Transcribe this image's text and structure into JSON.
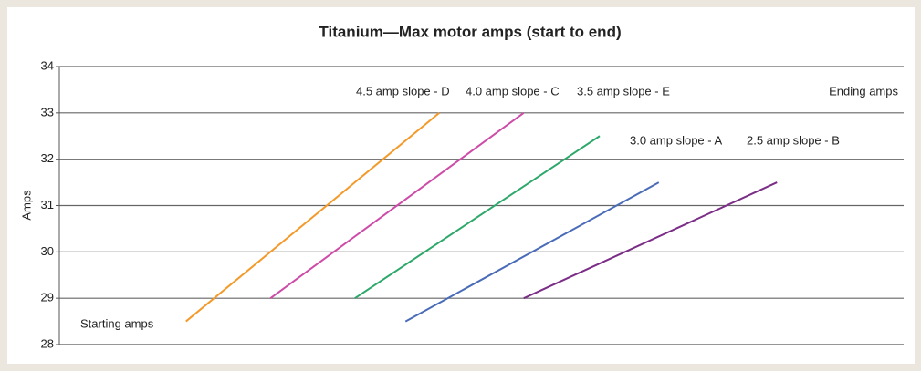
{
  "chart_data": {
    "type": "line",
    "title": "Titanium—Max motor amps (start to end)",
    "y_label": "Amps",
    "annotations": [
      "Starting amps",
      "Ending amps"
    ],
    "xlim": [
      0,
      100
    ],
    "ylim": [
      28,
      34
    ],
    "yticks": [
      28,
      29,
      30,
      31,
      32,
      33,
      34
    ],
    "grid": true,
    "series": [
      {
        "name": "4.5 amp slope - D",
        "color": "#f39a2b",
        "x": [
          15,
          45
        ],
        "values": [
          28.5,
          33
        ]
      },
      {
        "name": "4.0 amp slope - C",
        "color": "#cc4ca8",
        "x": [
          25,
          55
        ],
        "values": [
          29,
          33
        ]
      },
      {
        "name": "3.5 amp slope - E",
        "color": "#2ea86a",
        "x": [
          35,
          64
        ],
        "values": [
          29,
          32.5
        ]
      },
      {
        "name": "3.0 amp slope - A",
        "color": "#4a6cb8",
        "x": [
          41,
          71
        ],
        "values": [
          28.5,
          31.5
        ]
      },
      {
        "name": "2.5 amp slope - B",
        "color": "#7b2d87",
        "x": [
          55,
          85
        ],
        "values": [
          29,
          31.5
        ]
      }
    ]
  }
}
